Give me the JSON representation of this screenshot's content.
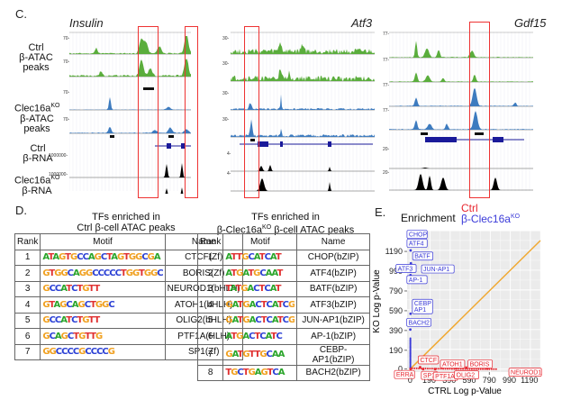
{
  "panel_c": {
    "letter": "C.",
    "genes": [
      "Insulin",
      "Atf3",
      "Gdf15"
    ],
    "row_labels": [
      {
        "line1": "Ctrl",
        "line2": "β-ATAC",
        "line3": "peaks",
        "sup": ""
      },
      {
        "line1": "Clec16a",
        "sup": "KO",
        "line2": "β-ATAC",
        "line3": "peaks"
      },
      {
        "line1": "Ctrl",
        "line2": "β-RNA",
        "line3": "",
        "sup": ""
      },
      {
        "line1": "Clec16a",
        "sup": "KO",
        "line2": "β-RNA",
        "line3": ""
      }
    ],
    "track_scales": {
      "insulin": {
        "atac": "70-",
        "rna": "1000000-"
      },
      "atf3": {
        "atac": "30-",
        "rna": "4-"
      },
      "gdf15": {
        "atac": "77-",
        "rna": "20-"
      }
    },
    "colors": {
      "ctrl_atac": "#5aad3c",
      "ko_atac": "#3d7bbf",
      "rna": "#000000",
      "gene": "#1a1a9a",
      "highlight": "#e33333"
    }
  },
  "panel_d": {
    "letter": "D.",
    "left": {
      "title_line1": "TFs enriched in",
      "title_line2": "Ctrl β-cell ATAC peaks",
      "headers": [
        "Rank",
        "Motif",
        "Name"
      ],
      "rows": [
        {
          "rank": "1",
          "motif": "ATAGTGCCAGCTAGTGGCGA",
          "name": "CTCF(Zf)"
        },
        {
          "rank": "2",
          "motif": "GTGGCAGGCCCCCTGGTGGC",
          "name": "BORIS(Zf)"
        },
        {
          "rank": "3",
          "motif": "GCCATCTGTT",
          "name": "NEUROD1(bHLH)"
        },
        {
          "rank": "4",
          "motif": "GTAGCAGCTGGC",
          "name": "ATOH1(bHLH)"
        },
        {
          "rank": "5",
          "motif": "GCCATCTGTT",
          "name": "OLIG2(bHLH)"
        },
        {
          "rank": "6",
          "motif": "GCAGCTGTTG",
          "name": "PTF1A(HLH)"
        },
        {
          "rank": "7",
          "motif": "GGCCCCGCCCCG",
          "name": "SP1(Zf)"
        }
      ]
    },
    "right": {
      "title_line1": "TFs enriched in",
      "title_line2_pre": "β-Clec16a",
      "title_sup": "KO",
      "title_line2_post": " β-cell ATAC peaks",
      "headers": [
        "Rank",
        "Motif",
        "Name"
      ],
      "rows": [
        {
          "rank": "1",
          "motif": "ATTGCATCAT",
          "name": "CHOP(bZIP)"
        },
        {
          "rank": "2",
          "motif": "ATGATGCAAT",
          "name": "ATF4(bZIP)"
        },
        {
          "rank": "3",
          "motif": "TATGACTCAT",
          "name": "BATF(bZIP)"
        },
        {
          "rank": "4",
          "motif": "GATGACTCATCG",
          "name": "ATF3(bZIP)"
        },
        {
          "rank": "5",
          "motif": "GATGACTCATCG",
          "name": "JUN-AP1(bZIP)"
        },
        {
          "rank": "6",
          "motif": "ATGACTCATC",
          "name": "AP-1(bZIP)"
        },
        {
          "rank": "7",
          "motif": "GATGTTGCAA",
          "name": "CEBP-AP1(bZIP)"
        },
        {
          "rank": "8",
          "motif": "TGCTGAGTCA",
          "name": "BACH2(bZIP)"
        }
      ]
    }
  },
  "panel_e": {
    "letter": "E.",
    "title": "Enrichment",
    "legend_ctrl": "Ctrl",
    "legend_ko_pre": "β-Clec16a",
    "legend_ko_sup": "KO",
    "colors": {
      "ctrl": "#e8262f",
      "ko": "#3b3bd9",
      "diagonal": "#f0a830",
      "panel_bg": "#ebebeb"
    }
  },
  "chart_data": {
    "type": "scatter",
    "title": "Enrichment",
    "xlabel": "CTRL Log p-Value",
    "ylabel": "KO Log p-Value",
    "xlim": [
      -30,
      1300
    ],
    "ylim": [
      -30,
      1400
    ],
    "xticks": [
      0,
      190,
      390,
      590,
      790,
      990,
      1190
    ],
    "yticks": [
      0,
      190,
      390,
      590,
      790,
      990,
      1190
    ],
    "grid": true,
    "reference_line": "y = x",
    "series": [
      {
        "name": "β-Clec16a KO",
        "color": "#3b3bd9",
        "points": [
          {
            "label": "CHOP",
            "x": 5,
            "y": 1290
          },
          {
            "label": "ATF4",
            "x": 5,
            "y": 1200
          },
          {
            "label": "BATF",
            "x": 8,
            "y": 1070
          },
          {
            "label": "ATF3",
            "x": 3,
            "y": 990
          },
          {
            "label": "JUN-AP1",
            "x": 6,
            "y": 985
          },
          {
            "label": "AP-1",
            "x": 4,
            "y": 950
          },
          {
            "label": "CEBP-AP1",
            "x": 5,
            "y": 560
          },
          {
            "label": "BACH2",
            "x": 2,
            "y": 400
          }
        ]
      },
      {
        "name": "Ctrl",
        "color": "#e8262f",
        "points": [
          {
            "label": "CTCF",
            "x": 100,
            "y": 20
          },
          {
            "label": "ATOH1",
            "x": 320,
            "y": 15
          },
          {
            "label": "BORIS",
            "x": 560,
            "y": 15
          },
          {
            "label": "NEUROD1",
            "x": 770,
            "y": 5
          },
          {
            "label": "ERRA",
            "x": 5,
            "y": 0
          },
          {
            "label": "SP1",
            "x": 130,
            "y": 0
          },
          {
            "label": "PTF1A",
            "x": 250,
            "y": 0
          },
          {
            "label": "OLIG2",
            "x": 460,
            "y": 5
          }
        ]
      }
    ]
  }
}
